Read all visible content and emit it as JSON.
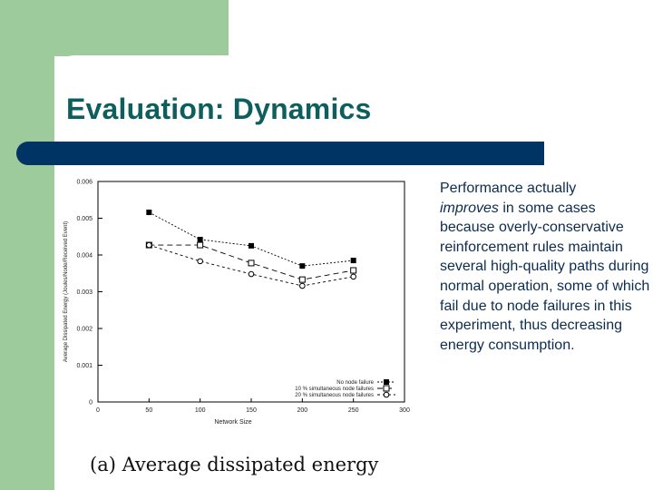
{
  "slide": {
    "title": "Evaluation: Dynamics",
    "colors": {
      "accent_green": "#9dcb9c",
      "title_teal": "#0f5e5e",
      "bar_navy": "#003464",
      "body_text": "#0c2c4f"
    },
    "body": {
      "pre": "Performance actually",
      "emph": "improves",
      "post": " in some cases because overly-conservative reinforcement rules maintain several high-quality paths during normal operation, some of which fail due to node failures in this experiment, thus decreasing energy consumption."
    },
    "caption": "(a) Average dissipated energy"
  },
  "chart_data": {
    "type": "line",
    "title": "",
    "xlabel": "Network Size",
    "ylabel": "Average Dissipated Energy (Joules/Node/Received Event)",
    "xlim": [
      0,
      300
    ],
    "ylim": [
      0,
      0.006
    ],
    "xticks": [
      "0",
      "50",
      "100",
      "150",
      "200",
      "250",
      "300"
    ],
    "yticks": [
      "0",
      "0.001",
      "0.002",
      "0.003",
      "0.004",
      "0.005",
      "0.006"
    ],
    "x": [
      50,
      100,
      150,
      200,
      250
    ],
    "series": [
      {
        "name": "No node failure",
        "marker": "filled-square",
        "values": [
          0.00516,
          0.00442,
          0.00425,
          0.0037,
          0.00385
        ]
      },
      {
        "name": "10 % simultaneous node failures",
        "marker": "open-square",
        "values": [
          0.00427,
          0.00427,
          0.00378,
          0.00333,
          0.00358
        ]
      },
      {
        "name": "20 % simultaneous node failures",
        "marker": "open-circle",
        "values": [
          0.00427,
          0.00383,
          0.00348,
          0.00316,
          0.00341
        ]
      }
    ],
    "legend_position": "lower right",
    "grid": false
  }
}
